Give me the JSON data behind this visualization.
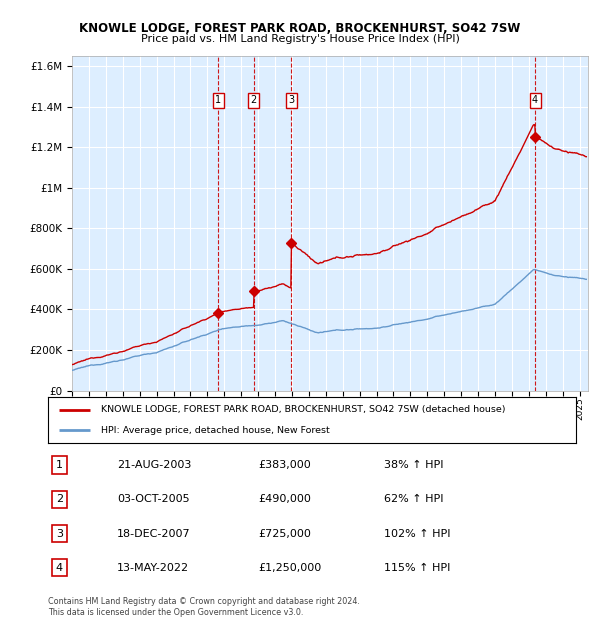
{
  "title": "KNOWLE LODGE, FOREST PARK ROAD, BROCKENHURST, SO42 7SW",
  "subtitle": "Price paid vs. HM Land Registry's House Price Index (HPI)",
  "legend_line1": "KNOWLE LODGE, FOREST PARK ROAD, BROCKENHURST, SO42 7SW (detached house)",
  "legend_line2": "HPI: Average price, detached house, New Forest",
  "transactions": [
    {
      "num": 1,
      "date": "21-AUG-2003",
      "year": 2003.64,
      "price": 383000,
      "price_str": "£383,000",
      "pct": "38%",
      "dir": "↑"
    },
    {
      "num": 2,
      "date": "03-OCT-2005",
      "year": 2005.75,
      "price": 490000,
      "price_str": "£490,000",
      "pct": "62%",
      "dir": "↑"
    },
    {
      "num": 3,
      "date": "18-DEC-2007",
      "year": 2007.96,
      "price": 725000,
      "price_str": "£725,000",
      "pct": "102%",
      "dir": "↑"
    },
    {
      "num": 4,
      "date": "13-MAY-2022",
      "year": 2022.37,
      "price": 1250000,
      "price_str": "£1,250,000",
      "pct": "115%",
      "dir": "↑"
    }
  ],
  "hpi_color": "#6699cc",
  "price_color": "#cc0000",
  "dashed_color": "#cc0000",
  "bg_color": "#ddeeff",
  "grid_color": "#ffffff",
  "ylim": [
    0,
    1650000
  ],
  "yticks": [
    0,
    200000,
    400000,
    600000,
    800000,
    1000000,
    1200000,
    1400000,
    1600000
  ],
  "xlim_start": 1995,
  "xlim_end": 2025.5,
  "footer1": "Contains HM Land Registry data © Crown copyright and database right 2024.",
  "footer2": "This data is licensed under the Open Government Licence v3.0."
}
